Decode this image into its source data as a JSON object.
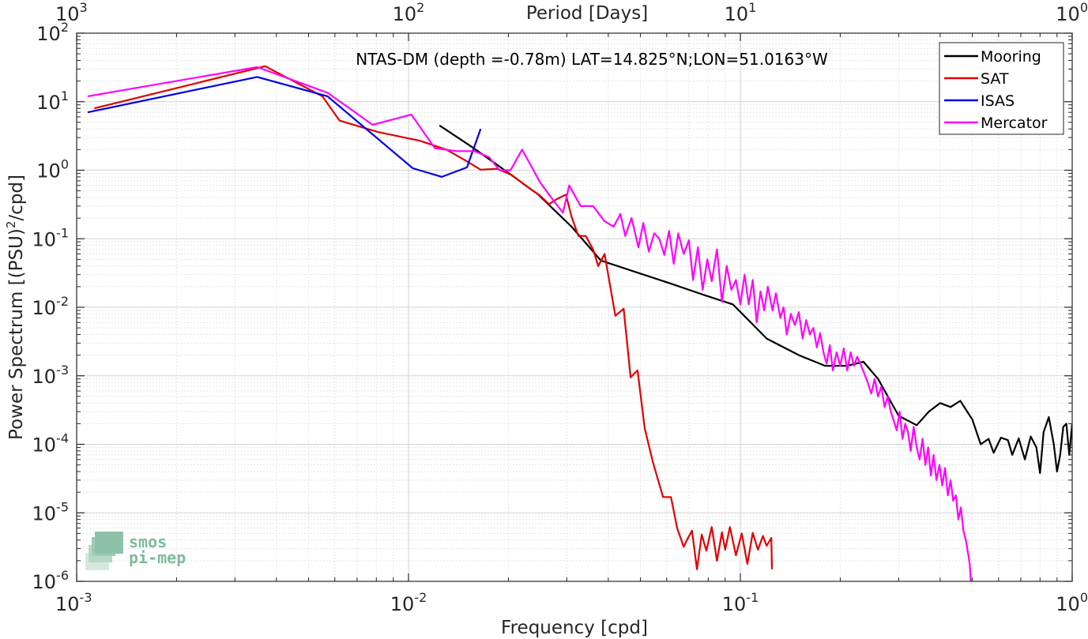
{
  "chart_data": {
    "type": "line",
    "title": "NTAS-DM (depth =-0.78m) LAT=14.825°N;LON=51.0163°W",
    "xlabel": "Frequency [cpd]",
    "ylabel": "Power Spectrum [(PSU)2/cpd]",
    "ylabel_main": "Power Spectrum [(PSU)",
    "ylabel_sup": "2",
    "ylabel_tail": "/cpd]",
    "top_xlabel": "Period [Days]",
    "xscale": "log",
    "yscale": "log",
    "xlim": [
      0.001,
      1
    ],
    "ylim": [
      1e-06,
      100
    ],
    "grid": true,
    "legend_position": "top-right",
    "x_ticks": [
      0.001,
      0.01,
      0.1,
      1
    ],
    "x_tick_labels": [
      {
        "base": "10",
        "exp": "-3"
      },
      {
        "base": "10",
        "exp": "-2"
      },
      {
        "base": "10",
        "exp": "-1"
      },
      {
        "base": "10",
        "exp": "0"
      }
    ],
    "top_x_ticks": [
      0.001,
      0.01,
      0.1,
      1
    ],
    "top_x_tick_labels": [
      {
        "base": "10",
        "exp": "3"
      },
      {
        "base": "10",
        "exp": "2"
      },
      {
        "base": "10",
        "exp": "1"
      },
      {
        "base": "10",
        "exp": "0"
      }
    ],
    "y_ticks": [
      1e-06,
      1e-05,
      0.0001,
      0.001,
      0.01,
      0.1,
      1,
      10,
      100
    ],
    "y_tick_labels": [
      {
        "base": "10",
        "exp": "-6"
      },
      {
        "base": "10",
        "exp": "-5"
      },
      {
        "base": "10",
        "exp": "-4"
      },
      {
        "base": "10",
        "exp": "-3"
      },
      {
        "base": "10",
        "exp": "-2"
      },
      {
        "base": "10",
        "exp": "-1"
      },
      {
        "base": "10",
        "exp": "0"
      },
      {
        "base": "10",
        "exp": "1"
      },
      {
        "base": "10",
        "exp": "2"
      }
    ],
    "series": [
      {
        "name": "Mooring",
        "color": "#000000",
        "points": [
          [
            0.0124,
            4.5
          ],
          [
            0.0155,
            2.2
          ],
          [
            0.0195,
            1.0
          ],
          [
            0.0245,
            0.45
          ],
          [
            0.031,
            0.15
          ],
          [
            0.038,
            0.048
          ],
          [
            0.049,
            0.032
          ],
          [
            0.062,
            0.022
          ],
          [
            0.078,
            0.015
          ],
          [
            0.095,
            0.011
          ],
          [
            0.12,
            0.0035
          ],
          [
            0.15,
            0.002
          ],
          [
            0.18,
            0.0014
          ],
          [
            0.21,
            0.0014
          ],
          [
            0.235,
            0.0016
          ],
          [
            0.26,
            0.0009
          ],
          [
            0.3,
            0.00026
          ],
          [
            0.34,
            0.00019
          ],
          [
            0.37,
            0.0003
          ],
          [
            0.4,
            0.0004
          ],
          [
            0.43,
            0.00035
          ],
          [
            0.46,
            0.00043
          ],
          [
            0.5,
            0.00023
          ],
          [
            0.53,
            0.0001
          ],
          [
            0.56,
            0.00012
          ],
          [
            0.58,
            7.5e-05
          ],
          [
            0.61,
            0.000125
          ],
          [
            0.64,
            0.000115
          ],
          [
            0.66,
            7e-05
          ],
          [
            0.69,
            0.000122
          ],
          [
            0.72,
            6e-05
          ],
          [
            0.75,
            0.00013
          ],
          [
            0.78,
            9e-05
          ],
          [
            0.8,
            3.8e-05
          ],
          [
            0.82,
            0.00015
          ],
          [
            0.85,
            0.00025
          ],
          [
            0.88,
            0.0001
          ],
          [
            0.9,
            4e-05
          ],
          [
            0.92,
            7e-05
          ],
          [
            0.94,
            0.00018
          ],
          [
            0.96,
            0.0002
          ],
          [
            0.98,
            7e-05
          ],
          [
            1.0,
            0.0002
          ]
        ]
      },
      {
        "name": "SAT",
        "color": "#e00000",
        "points": [
          [
            0.00113,
            8.0
          ],
          [
            0.0037,
            33
          ],
          [
            0.0055,
            12
          ],
          [
            0.0062,
            5.3
          ],
          [
            0.0081,
            3.6
          ],
          [
            0.0108,
            2.7
          ],
          [
            0.013,
            2.0
          ],
          [
            0.0148,
            1.4
          ],
          [
            0.0165,
            1.02
          ],
          [
            0.0185,
            1.05
          ],
          [
            0.0205,
            0.85
          ],
          [
            0.0225,
            0.6
          ],
          [
            0.025,
            0.42
          ],
          [
            0.0265,
            0.32
          ],
          [
            0.028,
            0.38
          ],
          [
            0.0298,
            0.44
          ],
          [
            0.031,
            0.21
          ],
          [
            0.0325,
            0.11
          ],
          [
            0.0342,
            0.11
          ],
          [
            0.036,
            0.07
          ],
          [
            0.0373,
            0.04
          ],
          [
            0.039,
            0.06
          ],
          [
            0.042,
            0.0075
          ],
          [
            0.0445,
            0.0095
          ],
          [
            0.0467,
            0.00095
          ],
          [
            0.049,
            0.0012
          ],
          [
            0.0515,
            0.00017
          ],
          [
            0.0545,
            5.5e-05
          ],
          [
            0.0585,
            1.7e-05
          ],
          [
            0.0618,
            1.7e-05
          ],
          [
            0.0645,
            6e-06
          ],
          [
            0.0675,
            3.2e-06
          ],
          [
            0.069,
            4e-06
          ],
          [
            0.0715,
            5.5e-06
          ],
          [
            0.074,
            1.5e-06
          ],
          [
            0.0765,
            4.8e-06
          ],
          [
            0.079,
            2.8e-06
          ],
          [
            0.082,
            6.2e-06
          ],
          [
            0.085,
            2e-06
          ],
          [
            0.088,
            5.2e-06
          ],
          [
            0.09,
            2.9e-06
          ],
          [
            0.093,
            6.2e-06
          ],
          [
            0.097,
            2.4e-06
          ],
          [
            0.101,
            5e-06
          ],
          [
            0.105,
            1.8e-06
          ],
          [
            0.109,
            5.1e-06
          ],
          [
            0.113,
            2.9e-06
          ],
          [
            0.117,
            4.6e-06
          ],
          [
            0.12,
            3.3e-06
          ],
          [
            0.124,
            4.3e-06
          ],
          [
            0.1245,
            1.5e-06
          ]
        ]
      },
      {
        "name": "ISAS",
        "color": "#0000e6",
        "points": [
          [
            0.00108,
            7.0
          ],
          [
            0.0035,
            23
          ],
          [
            0.0057,
            12
          ],
          [
            0.0103,
            1.07
          ],
          [
            0.0126,
            0.8
          ],
          [
            0.015,
            1.1
          ],
          [
            0.0165,
            4.0
          ]
        ]
      },
      {
        "name": "Mercator",
        "color": "#ff00ff",
        "points": [
          [
            0.00108,
            12
          ],
          [
            0.0035,
            32
          ],
          [
            0.0057,
            13.5
          ],
          [
            0.0078,
            4.6
          ],
          [
            0.0102,
            6.5
          ],
          [
            0.012,
            2.1
          ],
          [
            0.0139,
            1.9
          ],
          [
            0.0158,
            1.9
          ],
          [
            0.0175,
            1.55
          ],
          [
            0.0188,
            1.0
          ],
          [
            0.0203,
            1.0
          ],
          [
            0.022,
            2.0
          ],
          [
            0.025,
            0.65
          ],
          [
            0.0275,
            0.35
          ],
          [
            0.0292,
            0.24
          ],
          [
            0.0305,
            0.6
          ],
          [
            0.033,
            0.3
          ],
          [
            0.036,
            0.3
          ],
          [
            0.039,
            0.18
          ],
          [
            0.0415,
            0.15
          ],
          [
            0.0435,
            0.23
          ],
          [
            0.045,
            0.11
          ],
          [
            0.047,
            0.2
          ],
          [
            0.0493,
            0.075
          ],
          [
            0.051,
            0.17
          ],
          [
            0.053,
            0.065
          ],
          [
            0.055,
            0.12
          ],
          [
            0.057,
            0.1
          ],
          [
            0.059,
            0.058
          ],
          [
            0.061,
            0.13
          ],
          [
            0.063,
            0.043
          ],
          [
            0.065,
            0.12
          ],
          [
            0.0675,
            0.06
          ],
          [
            0.07,
            0.095
          ],
          [
            0.072,
            0.025
          ],
          [
            0.0745,
            0.075
          ],
          [
            0.077,
            0.018
          ],
          [
            0.0795,
            0.05
          ],
          [
            0.082,
            0.024
          ],
          [
            0.085,
            0.07
          ],
          [
            0.088,
            0.012
          ],
          [
            0.091,
            0.04
          ],
          [
            0.094,
            0.018
          ],
          [
            0.097,
            0.025
          ],
          [
            0.1,
            0.011
          ],
          [
            0.103,
            0.03
          ],
          [
            0.106,
            0.011
          ],
          [
            0.109,
            0.025
          ],
          [
            0.112,
            0.006
          ],
          [
            0.115,
            0.017
          ],
          [
            0.118,
            0.009
          ],
          [
            0.121,
            0.02
          ],
          [
            0.125,
            0.009
          ],
          [
            0.128,
            0.016
          ],
          [
            0.132,
            0.007
          ],
          [
            0.135,
            0.01
          ],
          [
            0.138,
            0.004
          ],
          [
            0.142,
            0.008
          ],
          [
            0.146,
            0.0055
          ],
          [
            0.15,
            0.0085
          ],
          [
            0.154,
            0.0035
          ],
          [
            0.158,
            0.0065
          ],
          [
            0.162,
            0.004
          ],
          [
            0.166,
            0.005
          ],
          [
            0.17,
            0.0026
          ],
          [
            0.174,
            0.0042
          ],
          [
            0.178,
            0.0022
          ],
          [
            0.182,
            0.0015
          ],
          [
            0.186,
            0.0028
          ],
          [
            0.19,
            0.0012
          ],
          [
            0.195,
            0.0022
          ],
          [
            0.2,
            0.0014
          ],
          [
            0.205,
            0.0025
          ],
          [
            0.21,
            0.0012
          ],
          [
            0.215,
            0.0022
          ],
          [
            0.22,
            0.0014
          ],
          [
            0.225,
            0.0019
          ],
          [
            0.23,
            0.0015
          ],
          [
            0.236,
            0.0011
          ],
          [
            0.242,
            0.0008
          ],
          [
            0.248,
            0.00055
          ],
          [
            0.254,
            0.0009
          ],
          [
            0.26,
            0.0005
          ],
          [
            0.266,
            0.0007
          ],
          [
            0.272,
            0.00035
          ],
          [
            0.278,
            0.0005
          ],
          [
            0.284,
            0.0003
          ],
          [
            0.29,
            0.00022
          ],
          [
            0.296,
            0.00016
          ],
          [
            0.302,
            0.0003
          ],
          [
            0.308,
            0.00012
          ],
          [
            0.314,
            0.0002
          ],
          [
            0.32,
            0.00015
          ],
          [
            0.326,
            8e-05
          ],
          [
            0.333,
            0.00018
          ],
          [
            0.34,
            9e-05
          ],
          [
            0.347,
            6e-05
          ],
          [
            0.354,
            0.00012
          ],
          [
            0.361,
            5e-05
          ],
          [
            0.368,
            9e-05
          ],
          [
            0.375,
            3.5e-05
          ],
          [
            0.382,
            7e-05
          ],
          [
            0.39,
            3e-05
          ],
          [
            0.398,
            5e-05
          ],
          [
            0.406,
            2.5e-05
          ],
          [
            0.414,
            4.5e-05
          ],
          [
            0.422,
            1.8e-05
          ],
          [
            0.43,
            3e-05
          ],
          [
            0.438,
            1.5e-05
          ],
          [
            0.446,
            1.8e-05
          ],
          [
            0.454,
            8e-06
          ],
          [
            0.462,
            1.2e-05
          ],
          [
            0.47,
            5.5e-06
          ],
          [
            0.478,
            4e-06
          ],
          [
            0.486,
            2.5e-06
          ],
          [
            0.491,
            1.8e-06
          ],
          [
            0.495,
            1e-06
          ]
        ]
      }
    ]
  },
  "logo": {
    "line1": "smos",
    "line2": "pi-mep"
  }
}
